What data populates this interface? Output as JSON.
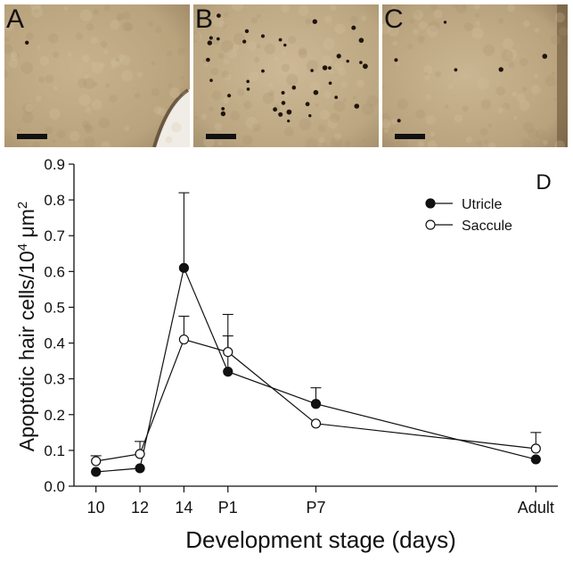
{
  "panels": [
    {
      "letter": "A",
      "dots": 1
    },
    {
      "letter": "B",
      "dots": 40
    },
    {
      "letter": "C",
      "dots": 6
    }
  ],
  "chart_data": {
    "type": "line",
    "panel_label": "D",
    "xlabel": "Development stage (days)",
    "ylabel": "Apoptotic hair cells/10",
    "ylabel_sup": "4",
    "ylabel_unit": " μm",
    "ylabel_sup2": "2",
    "categories": [
      "10",
      "12",
      "14",
      "P1",
      "P7",
      "Adult"
    ],
    "x_positions": [
      10,
      12,
      14,
      16,
      20,
      30
    ],
    "ylim": [
      0,
      0.9
    ],
    "yticks": [
      "0.0",
      "0.1",
      "0.2",
      "0.3",
      "0.4",
      "0.5",
      "0.6",
      "0.7",
      "0.8",
      "0.9"
    ],
    "legend_position": "top-right",
    "series": [
      {
        "name": "Utricle",
        "marker": "filled",
        "values": [
          0.04,
          0.05,
          0.61,
          0.32,
          0.23,
          0.075
        ],
        "err": [
          0.0,
          0.0,
          0.21,
          0.1,
          0.045,
          0.0
        ]
      },
      {
        "name": "Saccule",
        "marker": "open",
        "values": [
          0.07,
          0.09,
          0.41,
          0.375,
          0.175,
          0.105
        ],
        "err": [
          0.015,
          0.035,
          0.065,
          0.105,
          0.0,
          0.045
        ]
      }
    ]
  }
}
